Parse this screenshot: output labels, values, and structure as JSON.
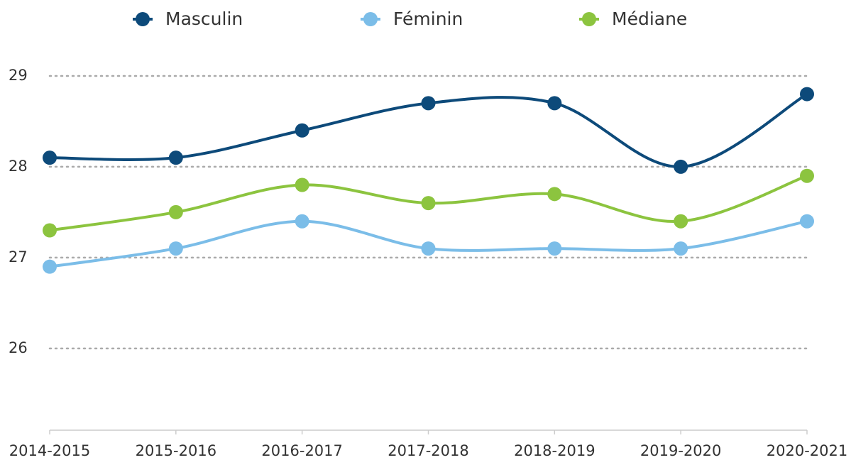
{
  "chart_data": {
    "type": "line",
    "categories": [
      "2014-2015",
      "2015-2016",
      "2016-2017",
      "2017-2018",
      "2018-2019",
      "2019-2020",
      "2020-2021"
    ],
    "series": [
      {
        "name": "Masculin",
        "color": "#0d4a7a",
        "values": [
          28.1,
          28.1,
          28.4,
          28.7,
          28.7,
          28.0,
          28.8
        ]
      },
      {
        "name": "Féminin",
        "color": "#7bbde8",
        "values": [
          26.9,
          27.1,
          27.4,
          27.1,
          27.1,
          27.1,
          27.4
        ]
      },
      {
        "name": "Médiane",
        "color": "#8cc43f",
        "values": [
          27.3,
          27.5,
          27.8,
          27.6,
          27.7,
          27.4,
          27.9
        ]
      }
    ],
    "ylim": [
      25.1,
      29.5
    ],
    "yticks": [
      26,
      27,
      28,
      29
    ],
    "grid": true,
    "legend": "top"
  }
}
